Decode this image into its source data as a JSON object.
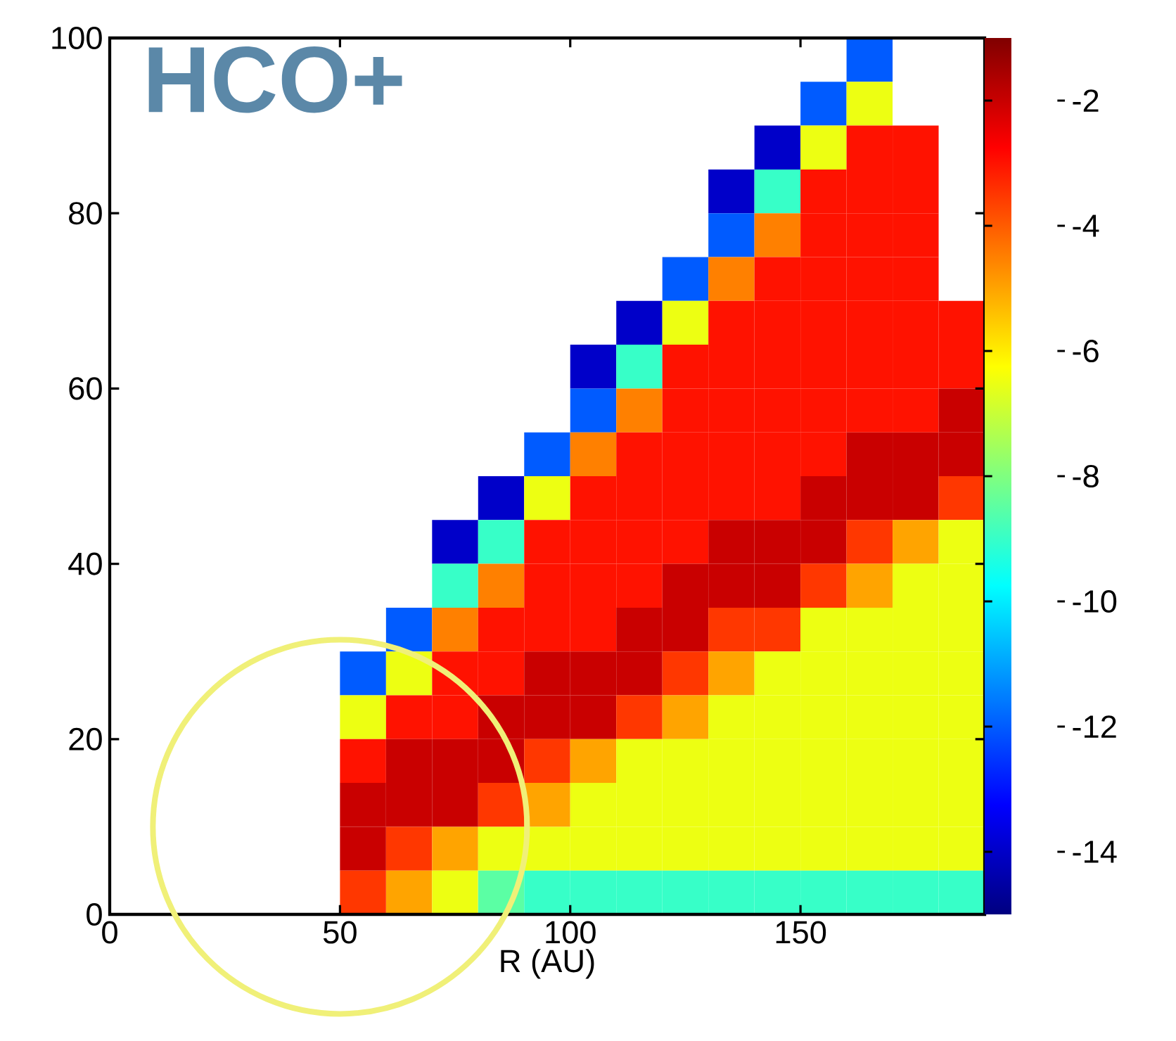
{
  "chart_data": {
    "type": "heatmap",
    "title": "HCO+",
    "xlabel": "R (AU)",
    "x": [
      5,
      15,
      25,
      35,
      45,
      55,
      65,
      75,
      85,
      95,
      105,
      115,
      125,
      135,
      145,
      155,
      165,
      175,
      185
    ],
    "y": [
      97.5,
      92.5,
      87.5,
      82.5,
      77.5,
      72.5,
      67.5,
      62.5,
      57.5,
      52.5,
      47.5,
      42.5,
      37.5,
      32.5,
      27.5,
      22.5,
      17.5,
      12.5,
      7.5,
      2.5
    ],
    "cells": [
      [
        null,
        null,
        null,
        null,
        null,
        null,
        null,
        null,
        null,
        null,
        null,
        null,
        null,
        null,
        null,
        null,
        -12,
        null,
        null
      ],
      [
        null,
        null,
        null,
        null,
        null,
        null,
        null,
        null,
        null,
        null,
        null,
        null,
        null,
        null,
        null,
        -12,
        -6.5,
        null,
        null
      ],
      [
        null,
        null,
        null,
        null,
        null,
        null,
        null,
        null,
        null,
        null,
        null,
        null,
        null,
        null,
        -14,
        -6.5,
        -3,
        -3,
        null
      ],
      [
        null,
        null,
        null,
        null,
        null,
        null,
        null,
        null,
        null,
        null,
        null,
        null,
        null,
        -14,
        -9,
        -3,
        -3,
        -3,
        null
      ],
      [
        null,
        null,
        null,
        null,
        null,
        null,
        null,
        null,
        null,
        null,
        null,
        null,
        null,
        -12,
        -4.5,
        -3,
        -3,
        -3,
        null
      ],
      [
        null,
        null,
        null,
        null,
        null,
        null,
        null,
        null,
        null,
        null,
        null,
        null,
        -12,
        -4.5,
        -3,
        -3,
        -3,
        -3,
        null
      ],
      [
        null,
        null,
        null,
        null,
        null,
        null,
        null,
        null,
        null,
        null,
        null,
        -14,
        -6.5,
        -3,
        -3,
        -3,
        -3,
        -3,
        -3
      ],
      [
        null,
        null,
        null,
        null,
        null,
        null,
        null,
        null,
        null,
        null,
        -14,
        -9,
        -3,
        -3,
        -3,
        -3,
        -3,
        -3,
        -3
      ],
      [
        null,
        null,
        null,
        null,
        null,
        null,
        null,
        null,
        null,
        null,
        -12,
        -4.5,
        -3,
        -3,
        -3,
        -3,
        -3,
        -3,
        -2
      ],
      [
        null,
        null,
        null,
        null,
        null,
        null,
        null,
        null,
        null,
        -12,
        -4.5,
        -3,
        -3,
        -3,
        -3,
        -3,
        -2,
        -2,
        -2
      ],
      [
        null,
        null,
        null,
        null,
        null,
        null,
        null,
        null,
        -14,
        -6.5,
        -3,
        -3,
        -3,
        -3,
        -3,
        -2,
        -2,
        -2,
        -3.5
      ],
      [
        null,
        null,
        null,
        null,
        null,
        null,
        null,
        -14,
        -9,
        -3,
        -3,
        -3,
        -3,
        -2,
        -2,
        -2,
        -3.5,
        -5,
        -6.5
      ],
      [
        null,
        null,
        null,
        null,
        null,
        null,
        null,
        -9,
        -4.5,
        -3,
        -3,
        -3,
        -2,
        -2,
        -2,
        -3.5,
        -5,
        -6.5,
        -6.5
      ],
      [
        null,
        null,
        null,
        null,
        null,
        null,
        -12,
        -4.5,
        -3,
        -3,
        -3,
        -2,
        -2,
        -3.5,
        -3.5,
        -6.5,
        -6.5,
        -6.5,
        -6.5
      ],
      [
        null,
        null,
        null,
        null,
        null,
        -12,
        -6.5,
        -3,
        -3,
        -2,
        -2,
        -2,
        -3.5,
        -5,
        -6.5,
        -6.5,
        -6.5,
        -6.5,
        -6.5
      ],
      [
        null,
        null,
        null,
        null,
        null,
        -6.5,
        -3,
        -3,
        -2,
        -2,
        -2,
        -3.5,
        -5,
        -6.5,
        -6.5,
        -6.5,
        -6.5,
        -6.5,
        -6.5
      ],
      [
        null,
        null,
        null,
        null,
        null,
        -3,
        -2,
        -2,
        -2,
        -3.5,
        -5,
        -6.5,
        -6.5,
        -6.5,
        -6.5,
        -6.5,
        -6.5,
        -6.5,
        -6.5
      ],
      [
        null,
        null,
        null,
        null,
        null,
        -2,
        -2,
        -2,
        -3.5,
        -5,
        -6.5,
        -6.5,
        -6.5,
        -6.5,
        -6.5,
        -6.5,
        -6.5,
        -6.5,
        -6.5
      ],
      [
        null,
        null,
        null,
        null,
        null,
        -2,
        -3.5,
        -5,
        -6.5,
        -6.5,
        -6.5,
        -6.5,
        -6.5,
        -6.5,
        -6.5,
        -6.5,
        -6.5,
        -6.5,
        -6.5
      ],
      [
        null,
        null,
        null,
        null,
        null,
        -3.5,
        -5,
        -6.5,
        -8.5,
        -9,
        -9,
        -9,
        -9,
        -9,
        -9,
        -9,
        -9,
        -9,
        -9
      ]
    ],
    "xlim": [
      0,
      190
    ],
    "ylim": [
      0,
      100
    ],
    "xticks": [
      0,
      50,
      100,
      150
    ],
    "yticks": [
      0,
      20,
      40,
      60,
      80,
      100
    ],
    "clim": [
      -15,
      -1
    ],
    "cticks": [
      -14,
      -12,
      -10,
      -8,
      -6,
      -4,
      -2
    ]
  }
}
